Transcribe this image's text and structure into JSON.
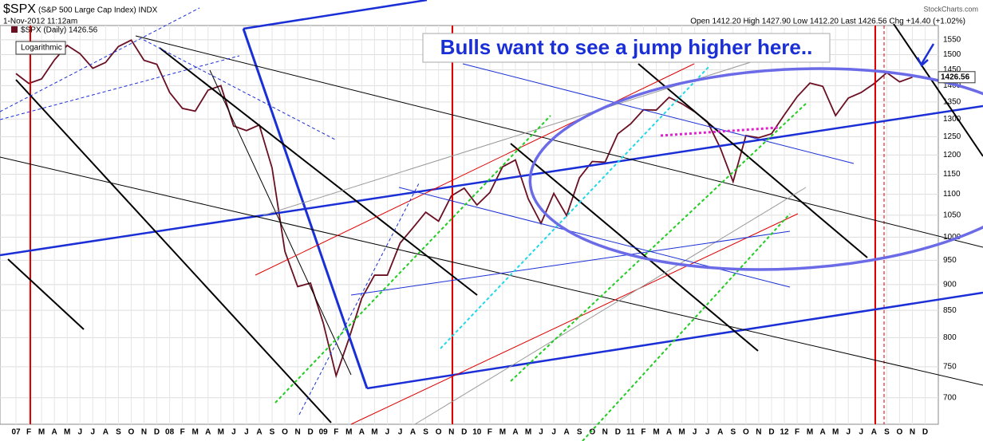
{
  "header": {
    "symbol": "$SPX",
    "name": "(S&P 500 Large Cap Index) INDX",
    "date": "1-Nov-2012 11:12am",
    "quote": "Open 1412.20 High 1427.90 Low 1412.20 Last 1426.56 Chg +14.40 (+1.02%)",
    "source": "StockCharts.com"
  },
  "chart_data": {
    "type": "line",
    "log_scale": true,
    "grid": true,
    "scale_label": "Logarithmic",
    "annotation": "Bulls want to see a jump higher here..",
    "last_value": 1426.56,
    "categories": [
      "07",
      "F",
      "M",
      "A",
      "M",
      "J",
      "J",
      "A",
      "S",
      "O",
      "N",
      "D",
      "08",
      "F",
      "M",
      "A",
      "M",
      "J",
      "J",
      "A",
      "S",
      "O",
      "N",
      "D",
      "09",
      "F",
      "M",
      "A",
      "M",
      "J",
      "J",
      "A",
      "S",
      "O",
      "N",
      "D",
      "10",
      "F",
      "M",
      "A",
      "M",
      "J",
      "J",
      "A",
      "S",
      "O",
      "N",
      "D",
      "11",
      "F",
      "M",
      "A",
      "M",
      "J",
      "J",
      "A",
      "S",
      "O",
      "N",
      "D",
      "12",
      "F",
      "M",
      "A",
      "M",
      "J",
      "J",
      "A",
      "S",
      "O",
      "N",
      "D"
    ],
    "series": [
      {
        "name": "$SPX (Daily) 1426.56",
        "color": "#6a0f22",
        "values": [
          1438,
          1407,
          1421,
          1482,
          1531,
          1503,
          1455,
          1474,
          1527,
          1549,
          1481,
          1468,
          1379,
          1331,
          1323,
          1386,
          1400,
          1280,
          1267,
          1283,
          1166,
          969,
          896,
          903,
          826,
          735,
          798,
          873,
          919,
          919,
          987,
          1021,
          1057,
          1036,
          1096,
          1115,
          1074,
          1104,
          1169,
          1187,
          1089,
          1031,
          1102,
          1049,
          1141,
          1183,
          1181,
          1258,
          1286,
          1327,
          1326,
          1364,
          1345,
          1321,
          1292,
          1219,
          1131,
          1253,
          1247,
          1258,
          1312,
          1366,
          1408,
          1398,
          1310,
          1362,
          1379,
          1406,
          1441,
          1412,
          1426.56,
          null
        ]
      }
    ],
    "ylim": [
      660,
      1600
    ],
    "yticks": [
      700,
      750,
      800,
      850,
      900,
      950,
      1000,
      1050,
      1100,
      1150,
      1200,
      1250,
      1300,
      1350,
      1400,
      1450,
      1500,
      1550
    ]
  }
}
